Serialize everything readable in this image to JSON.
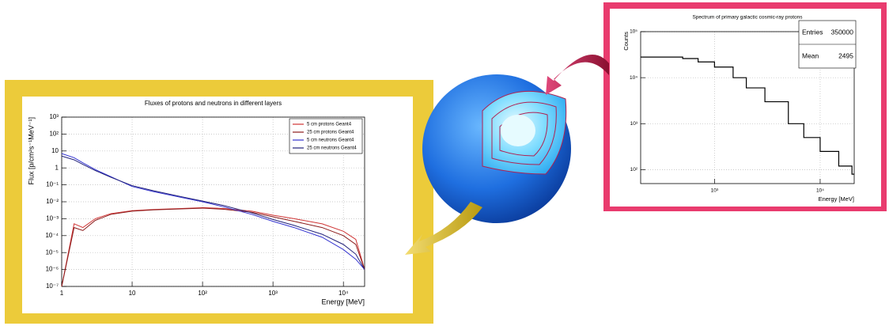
{
  "chart_data": [
    {
      "type": "line",
      "title": "Fluxes of protons and neutrons in different layers",
      "x_label": "Energy [MeV]",
      "y_label": "Flux [p/cm²s⁻¹MeV⁻¹]",
      "log_x": true,
      "log_y": true,
      "grid": true,
      "legend": "top-right",
      "x": [
        1,
        1.5,
        2,
        3,
        5,
        10,
        20,
        50,
        100,
        200,
        500,
        1000,
        2000,
        5000,
        10000,
        15000,
        20000
      ],
      "series": [
        {
          "name": "5 cm protons Geant4",
          "color": "#d03434",
          "values": [
            1e-07,
            0.0005,
            0.0003,
            0.001,
            0.002,
            0.003,
            0.0035,
            0.004,
            0.0045,
            0.004,
            0.0028,
            0.0016,
            0.001,
            0.0005,
            0.00018,
            6e-05,
            1e-06
          ]
        },
        {
          "name": "25 cm protons Geant4",
          "color": "#8b1c1c",
          "values": [
            1e-07,
            0.0003,
            0.0002,
            0.0008,
            0.0018,
            0.0028,
            0.0033,
            0.0038,
            0.0042,
            0.0036,
            0.0024,
            0.0013,
            0.0007,
            0.0003,
            0.0001,
            3e-05,
            1e-06
          ]
        },
        {
          "name": "5 cm neutrons Geant4",
          "color": "#3434d0",
          "values": [
            7,
            4,
            2,
            0.8,
            0.3,
            0.08,
            0.04,
            0.018,
            0.01,
            0.005,
            0.0018,
            0.0007,
            0.0003,
            8e-05,
            1.5e-05,
            4e-06,
            1e-06
          ]
        },
        {
          "name": "25 cm neutrons Geant4",
          "color": "#22227a",
          "values": [
            5,
            3,
            1.6,
            0.7,
            0.28,
            0.09,
            0.045,
            0.02,
            0.011,
            0.006,
            0.0022,
            0.0009,
            0.0004,
            0.00012,
            3e-05,
            8e-06,
            1e-06
          ]
        }
      ],
      "xlim": [
        1,
        20000
      ],
      "xticks": [
        1,
        10,
        {
          "value": 100,
          "label": "10²"
        },
        {
          "value": 1000,
          "label": "10³"
        },
        {
          "value": 10000,
          "label": "10⁴"
        }
      ],
      "ylim": [
        1e-07,
        1000
      ],
      "yticks": [
        {
          "value": 1000,
          "label": "10³"
        },
        {
          "value": 100,
          "label": "10²"
        },
        10,
        1,
        {
          "value": 0.1,
          "label": "10⁻¹"
        },
        {
          "value": 0.01,
          "label": "10⁻²"
        },
        {
          "value": 0.001,
          "label": "10⁻³"
        },
        {
          "value": 0.0001,
          "label": "10⁻⁴"
        },
        {
          "value": 1e-05,
          "label": "10⁻⁵"
        },
        {
          "value": 1e-06,
          "label": "10⁻⁶"
        },
        {
          "value": 1e-07,
          "label": "10⁻⁷"
        }
      ]
    },
    {
      "type": "step",
      "title": "Spectrum of primary galactic cosmic-ray protons",
      "x_label": "Energy [MeV]",
      "y_label": "Counts",
      "log_x": true,
      "log_y": true,
      "grid": true,
      "x": [
        200,
        500,
        700,
        1000,
        1500,
        2000,
        3000,
        5000,
        7000,
        10000,
        15000,
        20000
      ],
      "series": [
        {
          "name": "Counts",
          "color": "#000000",
          "values": [
            28000,
            26000,
            22000,
            17000,
            10000,
            6000,
            3000,
            1000,
            500,
            250,
            120,
            80
          ]
        }
      ],
      "xlim": [
        200,
        21000
      ],
      "xticks": [
        {
          "value": 1000,
          "label": "10³"
        },
        {
          "value": 10000,
          "label": "10⁴"
        }
      ],
      "ylim": [
        50,
        100000
      ],
      "yticks": [
        {
          "value": 100,
          "label": "10²"
        },
        {
          "value": 1000,
          "label": "10³"
        },
        {
          "value": 10000,
          "label": "10⁴"
        },
        {
          "value": 100000,
          "label": "10⁵"
        }
      ],
      "stats": [
        {
          "label": "Entries",
          "value": 350000
        },
        {
          "label": "Mean",
          "value": 2495
        }
      ]
    }
  ]
}
